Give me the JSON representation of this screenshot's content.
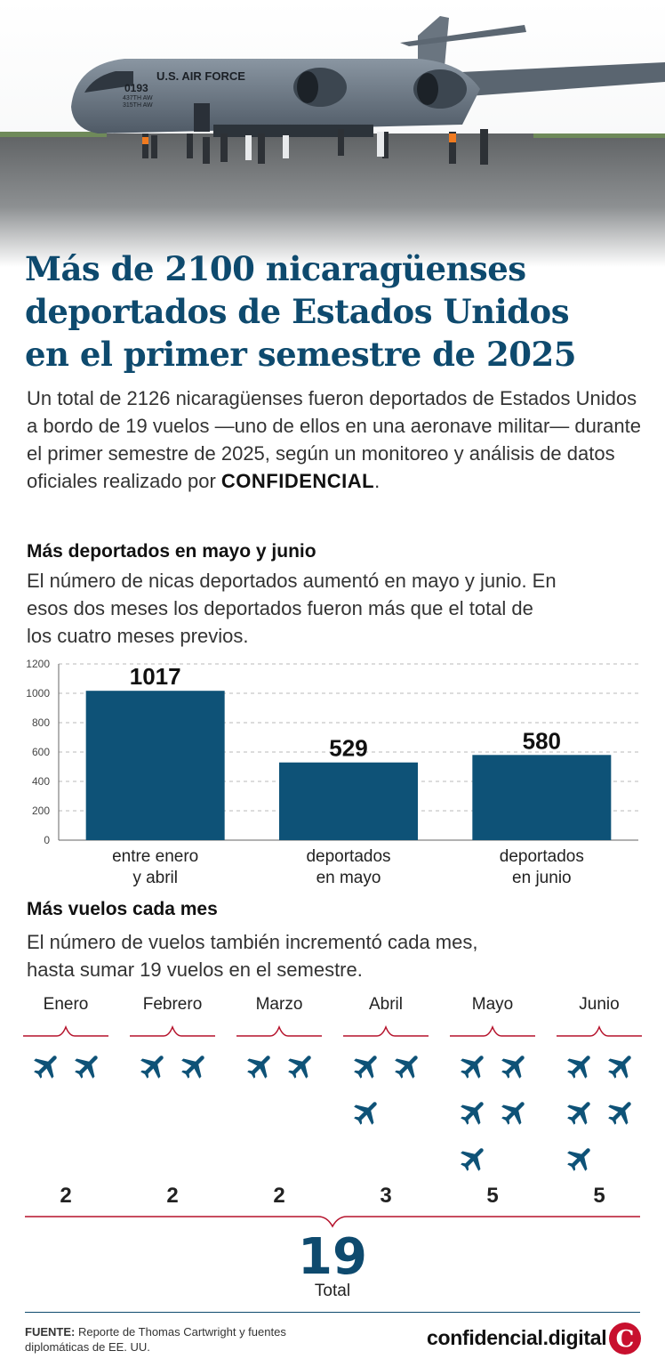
{
  "hero": {
    "plane_tail_number": "0193",
    "plane_fuselage_text": "U.S. AIR FORCE",
    "plane_badge_1": "437TH AW",
    "plane_badge_2": "315TH AW"
  },
  "title_lines": [
    "Más de 2100 nicaragüenses",
    "deportados de Estados Unidos",
    "en el primer semestre de 2025"
  ],
  "lead": {
    "text_before": "Un total de 2126 nicaragüenses fueron deportados de Estados Unidos a bordo de 19 vuelos —uno de ellos en una aeronave militar— durante el primer semestre de 2025, según un monitoreo y análisis de datos oficiales realizado por ",
    "brand": "CONFIDENCIAL",
    "text_after": "."
  },
  "section1": {
    "heading": "Más deportados en mayo y junio",
    "description": "El número de nicas deportados aumentó en mayo y junio. En esos dos meses los deportados fueron más que el total de los cuatro meses previos."
  },
  "chart_data": {
    "type": "bar",
    "categories": [
      [
        "entre enero",
        "y abril"
      ],
      [
        "deportados",
        "en mayo"
      ],
      [
        "deportados",
        "en junio"
      ]
    ],
    "values": [
      1017,
      529,
      580
    ],
    "ylim": [
      0,
      1200
    ],
    "yticks": [
      0,
      200,
      400,
      600,
      800,
      1000,
      1200
    ],
    "grid": true,
    "bar_color": "#0e5277",
    "title": "Más deportados en mayo y junio",
    "xlabel": "",
    "ylabel": ""
  },
  "section2": {
    "heading": "Más vuelos cada mes",
    "description": "El número de vuelos también incrementó cada mes, hasta sumar 19 vuelos en el semestre."
  },
  "flights": [
    {
      "month": "Enero",
      "count": 2
    },
    {
      "month": "Febrero",
      "count": 2
    },
    {
      "month": "Marzo",
      "count": 2
    },
    {
      "month": "Abril",
      "count": 3
    },
    {
      "month": "Mayo",
      "count": 5
    },
    {
      "month": "Junio",
      "count": 5
    }
  ],
  "total": {
    "value": "19",
    "label": "Total"
  },
  "footer": {
    "source_label": "FUENTE:",
    "source_text": " Reporte de Thomas Cartwright y fuentes diplomáticas de EE. UU.",
    "logo_text": "confidencial.digital",
    "logo_letter": "C"
  },
  "colors": {
    "accent": "#0e4a6e",
    "bar": "#0e5277",
    "brace": "#b5122b",
    "logo": "#c8102e"
  }
}
